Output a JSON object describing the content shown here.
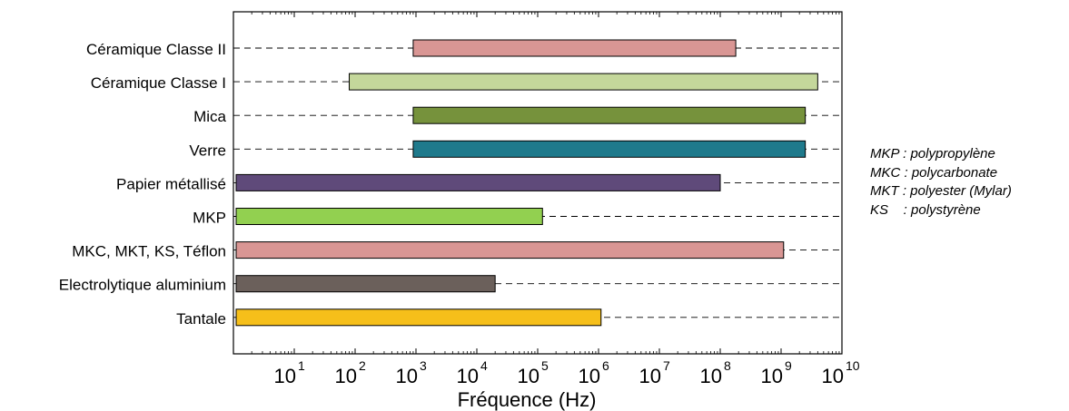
{
  "chart_data": {
    "type": "bar",
    "subtype": "horizontal-range",
    "title": "",
    "xlabel": "Fréquence (Hz)",
    "ylabel": "",
    "x_scale": "log",
    "xlim": [
      1,
      10000000000
    ],
    "x_ticks": [
      {
        "base": "10",
        "exp": "1"
      },
      {
        "base": "10",
        "exp": "2"
      },
      {
        "base": "10",
        "exp": "3"
      },
      {
        "base": "10",
        "exp": "4"
      },
      {
        "base": "10",
        "exp": "5"
      },
      {
        "base": "10",
        "exp": "6"
      },
      {
        "base": "10",
        "exp": "7"
      },
      {
        "base": "10",
        "exp": "8"
      },
      {
        "base": "10",
        "exp": "9"
      },
      {
        "base": "10",
        "exp": "10"
      }
    ],
    "grid": "dashed lines per category",
    "categories": [
      "Céramique Classe II",
      "Céramique Classe I",
      "Mica",
      "Verre",
      "Papier métallisé",
      "MKP",
      "MKC, MKT, KS, Téflon",
      "Electrolytique aluminium",
      "Tantale"
    ],
    "ranges": [
      {
        "min": 900,
        "max": 180000000,
        "color": "#d99694"
      },
      {
        "min": 80,
        "max": 4000000000,
        "color": "#c4d79b"
      },
      {
        "min": 900,
        "max": 2500000000,
        "color": "#76923c"
      },
      {
        "min": 900,
        "max": 2500000000,
        "color": "#1f7a8c"
      },
      {
        "min": 1,
        "max": 100000000,
        "color": "#5f4a7a"
      },
      {
        "min": 1,
        "max": 120000,
        "color": "#92d050"
      },
      {
        "min": 1,
        "max": 1100000000,
        "color": "#d99694"
      },
      {
        "min": 1,
        "max": 20000,
        "color": "#6b605b"
      },
      {
        "min": 1,
        "max": 1100000,
        "color": "#f6bf1a"
      }
    ]
  },
  "notes": [
    "MKP : polypropylène",
    "MKC : polycarbonate",
    "MKT : polyester (Mylar)",
    "KS    : polystyrène"
  ]
}
